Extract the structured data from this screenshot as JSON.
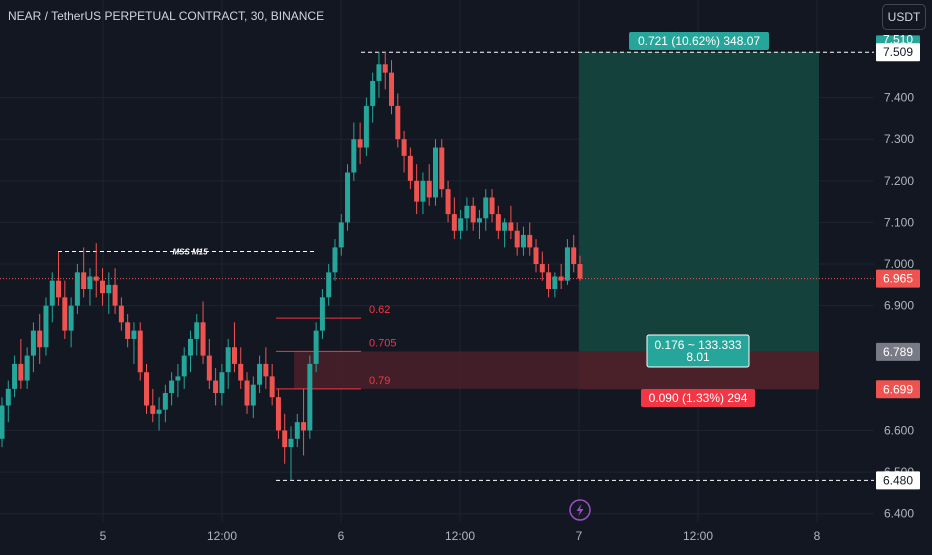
{
  "header": {
    "title": "NEAR / TetherUS PERPETUAL CONTRACT, 30, BINANCE",
    "currency_button": "USDT"
  },
  "colors": {
    "background": "#131722",
    "grid": "#1f2330",
    "bull": "#26a69a",
    "bear": "#ef5350",
    "text": "#d1d4dc",
    "axis_text": "#b2b5be",
    "profit_zone": "#15413d",
    "loss_zone": "#4a2029",
    "fib": "#f23645"
  },
  "annotations": {
    "mss_label": "MSS M15",
    "fib_levels": [
      {
        "label": "0.62",
        "price": 6.87
      },
      {
        "label": "0.705",
        "price": 6.79
      },
      {
        "label": "0.79",
        "price": 6.7
      }
    ],
    "target_label": "0.721 (10.62%) 348.07",
    "entry_label_line1": "0.176 ~ 133.333",
    "entry_label_line2": "8.01",
    "stop_label": "0.090 (1.33%) 294",
    "lightning_icon": "lightning-icon"
  },
  "axis": {
    "price_ticks": [
      "7.400",
      "7.300",
      "7.200",
      "7.100",
      "7.000",
      "6.900",
      "6.600",
      "6.500",
      "6.400"
    ],
    "time_ticks": [
      "5",
      "12:00",
      "6",
      "12:00",
      "7",
      "12:00",
      "8"
    ],
    "price_badges": [
      {
        "label": "7.510",
        "kind": "target",
        "price": 7.511
      },
      {
        "label": "7.509",
        "kind": "high",
        "price": 7.509
      },
      {
        "label": "6.965",
        "kind": "last",
        "price": 6.965
      },
      {
        "label": "6.789",
        "kind": "entry",
        "price": 6.789
      },
      {
        "label": "6.699",
        "kind": "stop",
        "price": 6.699
      },
      {
        "label": "6.480",
        "kind": "low",
        "price": 6.48
      }
    ]
  },
  "chart_data": {
    "type": "candlestick",
    "symbol": "NEAR / TetherUS PERPETUAL CONTRACT",
    "interval": "30",
    "exchange": "BINANCE",
    "ylim": [
      6.4,
      7.53
    ],
    "x_tick_labels": [
      "5",
      "12:00",
      "6",
      "12:00",
      "7",
      "12:00",
      "8"
    ],
    "last_price": 6.965,
    "swing_high": 7.509,
    "swing_low": 6.48,
    "mss_level": 7.03,
    "position": {
      "side": "long",
      "entry": 6.789,
      "stop": 6.699,
      "target": 7.51
    },
    "candles_ohlc": [
      [
        6.58,
        6.68,
        6.56,
        6.66
      ],
      [
        6.66,
        6.72,
        6.62,
        6.7
      ],
      [
        6.7,
        6.78,
        6.68,
        6.76
      ],
      [
        6.76,
        6.82,
        6.7,
        6.72
      ],
      [
        6.72,
        6.8,
        6.7,
        6.78
      ],
      [
        6.78,
        6.86,
        6.74,
        6.84
      ],
      [
        6.84,
        6.88,
        6.76,
        6.8
      ],
      [
        6.8,
        6.92,
        6.78,
        6.9
      ],
      [
        6.9,
        6.98,
        6.86,
        6.96
      ],
      [
        6.96,
        7.03,
        6.9,
        6.92
      ],
      [
        6.92,
        6.96,
        6.82,
        6.84
      ],
      [
        6.84,
        6.92,
        6.8,
        6.9
      ],
      [
        6.9,
        7.0,
        6.88,
        6.98
      ],
      [
        6.98,
        7.04,
        6.92,
        6.94
      ],
      [
        6.94,
        6.99,
        6.9,
        6.97
      ],
      [
        6.97,
        7.05,
        6.92,
        6.96
      ],
      [
        6.96,
        6.99,
        6.9,
        6.93
      ],
      [
        6.93,
        6.98,
        6.88,
        6.95
      ],
      [
        6.95,
        6.99,
        6.88,
        6.9
      ],
      [
        6.9,
        6.92,
        6.84,
        6.86
      ],
      [
        6.86,
        6.88,
        6.8,
        6.82
      ],
      [
        6.82,
        6.86,
        6.76,
        6.84
      ],
      [
        6.84,
        6.86,
        6.72,
        6.74
      ],
      [
        6.74,
        6.76,
        6.64,
        6.66
      ],
      [
        6.66,
        6.7,
        6.62,
        6.64
      ],
      [
        6.64,
        6.68,
        6.6,
        6.65
      ],
      [
        6.65,
        6.71,
        6.62,
        6.69
      ],
      [
        6.69,
        6.74,
        6.66,
        6.72
      ],
      [
        6.72,
        6.76,
        6.68,
        6.73
      ],
      [
        6.73,
        6.8,
        6.7,
        6.78
      ],
      [
        6.78,
        6.84,
        6.74,
        6.82
      ],
      [
        6.82,
        6.88,
        6.78,
        6.86
      ],
      [
        6.86,
        6.91,
        6.76,
        6.78
      ],
      [
        6.78,
        6.82,
        6.7,
        6.72
      ],
      [
        6.72,
        6.75,
        6.66,
        6.69
      ],
      [
        6.69,
        6.76,
        6.66,
        6.74
      ],
      [
        6.74,
        6.82,
        6.7,
        6.8
      ],
      [
        6.8,
        6.86,
        6.74,
        6.76
      ],
      [
        6.76,
        6.8,
        6.7,
        6.72
      ],
      [
        6.72,
        6.74,
        6.64,
        6.66
      ],
      [
        6.66,
        6.73,
        6.63,
        6.71
      ],
      [
        6.71,
        6.78,
        6.69,
        6.76
      ],
      [
        6.76,
        6.8,
        6.7,
        6.73
      ],
      [
        6.73,
        6.76,
        6.66,
        6.68
      ],
      [
        6.68,
        6.7,
        6.58,
        6.6
      ],
      [
        6.6,
        6.64,
        6.52,
        6.56
      ],
      [
        6.56,
        6.61,
        6.48,
        6.58
      ],
      [
        6.58,
        6.64,
        6.56,
        6.62
      ],
      [
        6.62,
        6.7,
        6.54,
        6.6
      ],
      [
        6.6,
        6.78,
        6.58,
        6.76
      ],
      [
        6.76,
        6.86,
        6.74,
        6.84
      ],
      [
        6.84,
        6.94,
        6.82,
        6.92
      ],
      [
        6.92,
        7.0,
        6.9,
        6.98
      ],
      [
        6.98,
        7.06,
        6.96,
        7.04
      ],
      [
        7.04,
        7.12,
        7.02,
        7.1
      ],
      [
        7.1,
        7.24,
        7.08,
        7.22
      ],
      [
        7.22,
        7.34,
        7.2,
        7.3
      ],
      [
        7.3,
        7.34,
        7.24,
        7.28
      ],
      [
        7.28,
        7.4,
        7.26,
        7.38
      ],
      [
        7.38,
        7.46,
        7.34,
        7.44
      ],
      [
        7.44,
        7.51,
        7.4,
        7.48
      ],
      [
        7.48,
        7.51,
        7.42,
        7.46
      ],
      [
        7.46,
        7.49,
        7.36,
        7.38
      ],
      [
        7.38,
        7.41,
        7.28,
        7.3
      ],
      [
        7.3,
        7.32,
        7.22,
        7.26
      ],
      [
        7.26,
        7.28,
        7.18,
        7.2
      ],
      [
        7.2,
        7.24,
        7.12,
        7.15
      ],
      [
        7.15,
        7.22,
        7.12,
        7.2
      ],
      [
        7.2,
        7.24,
        7.14,
        7.16
      ],
      [
        7.16,
        7.3,
        7.14,
        7.28
      ],
      [
        7.28,
        7.3,
        7.16,
        7.18
      ],
      [
        7.18,
        7.2,
        7.1,
        7.12
      ],
      [
        7.12,
        7.16,
        7.06,
        7.08
      ],
      [
        7.08,
        7.13,
        7.06,
        7.11
      ],
      [
        7.11,
        7.16,
        7.08,
        7.14
      ],
      [
        7.14,
        7.16,
        7.08,
        7.1
      ],
      [
        7.1,
        7.13,
        7.06,
        7.11
      ],
      [
        7.11,
        7.18,
        7.08,
        7.16
      ],
      [
        7.16,
        7.18,
        7.1,
        7.12
      ],
      [
        7.12,
        7.14,
        7.06,
        7.08
      ],
      [
        7.08,
        7.11,
        7.04,
        7.1
      ],
      [
        7.1,
        7.14,
        7.06,
        7.08
      ],
      [
        7.08,
        7.1,
        7.02,
        7.04
      ],
      [
        7.04,
        7.09,
        7.02,
        7.07
      ],
      [
        7.07,
        7.1,
        7.02,
        7.04
      ],
      [
        7.04,
        7.06,
        6.98,
        7.0
      ],
      [
        7.0,
        7.03,
        6.96,
        6.98
      ],
      [
        6.98,
        7.0,
        6.92,
        6.94
      ],
      [
        6.94,
        6.98,
        6.92,
        6.97
      ],
      [
        6.97,
        7.0,
        6.94,
        6.96
      ],
      [
        6.96,
        7.06,
        6.95,
        7.04
      ],
      [
        7.04,
        7.07,
        6.98,
        7.0
      ],
      [
        7.0,
        7.02,
        6.96,
        6.965
      ]
    ]
  }
}
